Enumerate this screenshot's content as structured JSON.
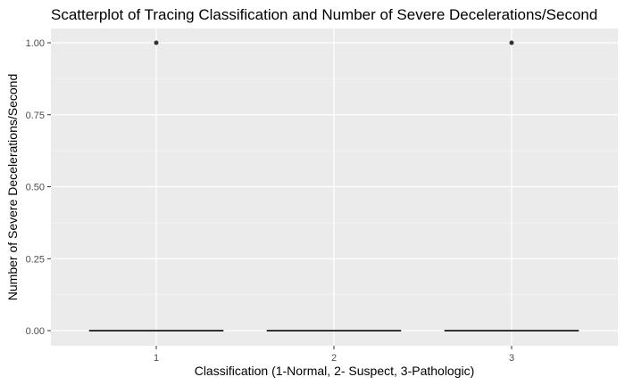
{
  "chart_data": {
    "type": "box",
    "title": "Scatterplot of Tracing Classification and Number of Severe Decelerations/Second",
    "xlabel": "Classification (1-Normal, 2- Suspect, 3-Pathologic)",
    "ylabel": "Number of Severe Decelerations/Second",
    "categories": [
      "1",
      "2",
      "3"
    ],
    "ylim": [
      0,
      1
    ],
    "yticks": [
      "0.00",
      "0.25",
      "0.50",
      "0.75",
      "1.00"
    ],
    "boxes": [
      {
        "category": "1",
        "min": 0,
        "q1": 0,
        "median": 0,
        "q3": 0,
        "max": 0
      },
      {
        "category": "2",
        "min": 0,
        "q1": 0,
        "median": 0,
        "q3": 0,
        "max": 0
      },
      {
        "category": "3",
        "min": 0,
        "q1": 0,
        "median": 0,
        "q3": 0,
        "max": 0
      }
    ],
    "outliers": [
      {
        "category": "1",
        "value": 1.0
      },
      {
        "category": "3",
        "value": 1.0
      }
    ],
    "grid": true,
    "panel_color": "#ebebeb"
  }
}
